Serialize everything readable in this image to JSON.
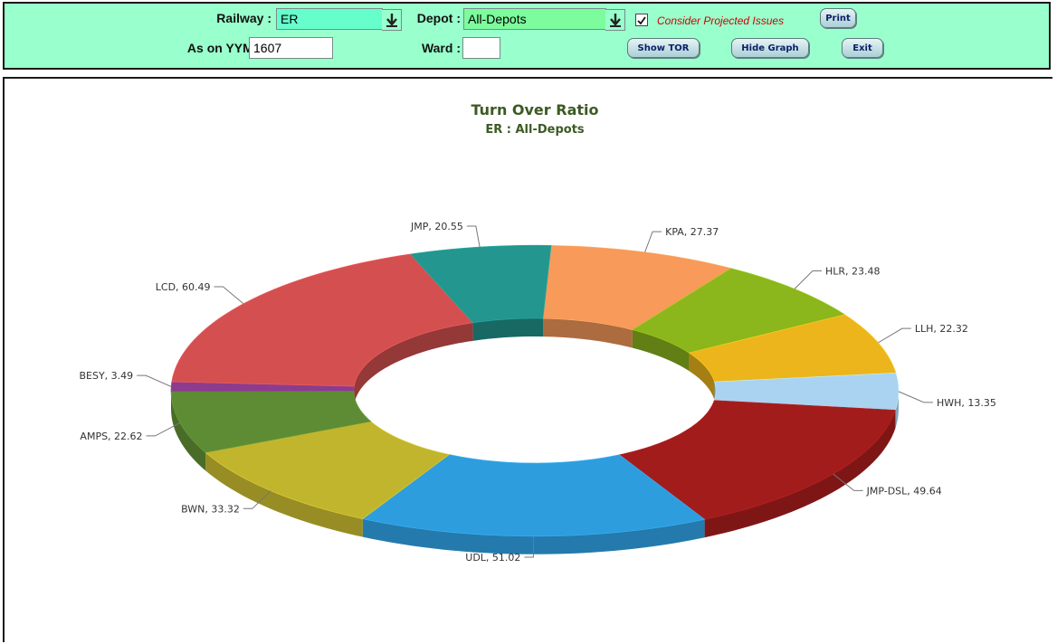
{
  "toolbar": {
    "railway_label": "Railway :",
    "railway_value": "ER",
    "depot_label": "Depot :",
    "depot_value": "All-Depots",
    "consider_label": "Consider Projected Issues",
    "consider_checked": true,
    "print_label": "Print",
    "yymm_label": "As on YYMM :",
    "yymm_value": "1607",
    "ward_label": "Ward :",
    "ward_value": "",
    "show_tor_label": "Show TOR",
    "hide_graph_label": "Hide Graph",
    "exit_label": "Exit"
  },
  "colors": {
    "toolbar_bg": "#99ffcc",
    "title": "#3c5a24",
    "button_text": "#0c1f6a",
    "check_label": "#d10000"
  },
  "chart_data": {
    "type": "pie",
    "variant": "3d-donut",
    "title": "Turn Over Ratio",
    "subtitle": "ER : All-Depots",
    "slices": [
      {
        "label": "KPA",
        "value": 27.37,
        "color": "#f79a5a"
      },
      {
        "label": "HLR",
        "value": 23.48,
        "color": "#8bb61c"
      },
      {
        "label": "LLH",
        "value": 22.32,
        "color": "#ecb51c"
      },
      {
        "label": "HWH",
        "value": 13.35,
        "color": "#a9d3f1"
      },
      {
        "label": "JMP-DSL",
        "value": 49.64,
        "color": "#a31c1c"
      },
      {
        "label": "UDL",
        "value": 51.02,
        "color": "#2e9ddd"
      },
      {
        "label": "BWN",
        "value": 33.32,
        "color": "#c2b52e"
      },
      {
        "label": "AMPS",
        "value": 22.62,
        "color": "#5e8c34"
      },
      {
        "label": "BESY",
        "value": 3.49,
        "color": "#8c3c8c"
      },
      {
        "label": "LCD",
        "value": 60.49,
        "color": "#d45050"
      },
      {
        "label": "JMP",
        "value": 20.55,
        "color": "#22968f"
      }
    ]
  }
}
